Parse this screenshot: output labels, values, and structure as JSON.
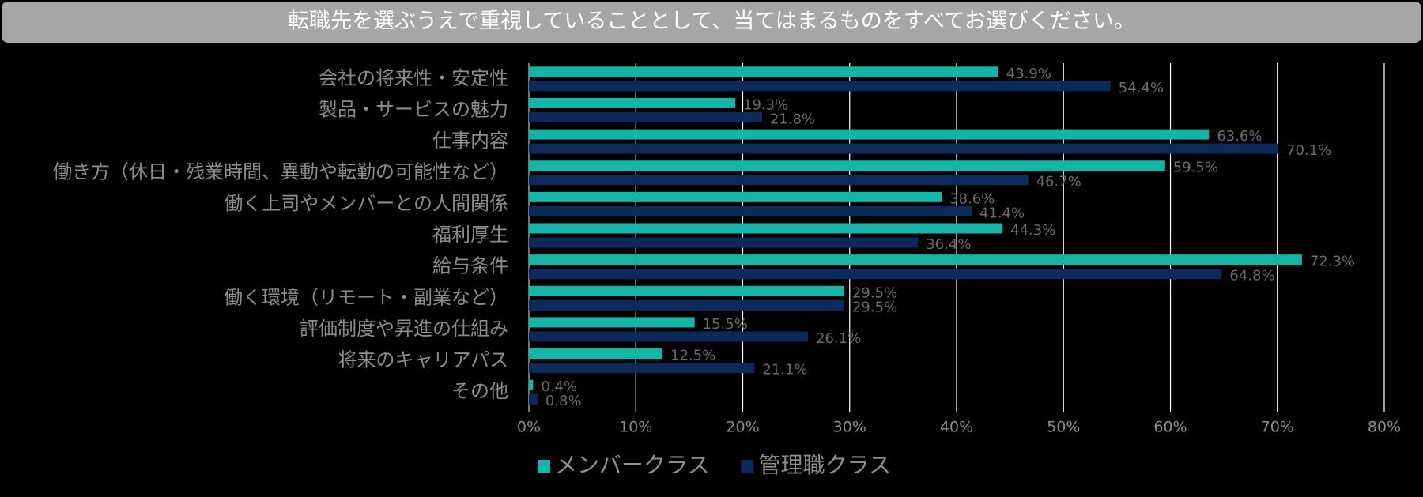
{
  "chart_data": {
    "type": "bar",
    "orientation": "horizontal",
    "title": "転職先を選ぶうえで重視していることとして、当てはまるものをすべてお選びください。",
    "categories": [
      "会社の将来性・安定性",
      "製品・サービスの魅力",
      "仕事内容",
      "働き方（休日・残業時間、異動や転勤の可能性など）",
      "働く上司やメンバーとの人間関係",
      "福利厚生",
      "給与条件",
      "働く環境（リモート・副業など）",
      "評価制度や昇進の仕組み",
      "将来のキャリアパス",
      "その他"
    ],
    "series": [
      {
        "name": "メンバークラス",
        "color": "#13b5a6",
        "values": [
          43.9,
          19.3,
          63.6,
          59.5,
          38.6,
          44.3,
          72.3,
          29.5,
          15.5,
          12.5,
          0.4
        ],
        "value_labels": [
          "43.9%",
          "19.3%",
          "63.6%",
          "59.5%",
          "38.6%",
          "44.3%",
          "72.3%",
          "29.5%",
          "15.5%",
          "12.5%",
          "0.4%"
        ]
      },
      {
        "name": "管理職クラス",
        "color": "#0c2a5c",
        "values": [
          54.4,
          21.8,
          70.1,
          46.7,
          41.4,
          36.4,
          64.8,
          29.5,
          26.1,
          21.1,
          0.8
        ],
        "value_labels": [
          "54.4%",
          "21.8%",
          "70.1%",
          "46.7%",
          "41.4%",
          "36.4%",
          "64.8%",
          "29.5%",
          "26.1%",
          "21.1%",
          "0.8%"
        ]
      }
    ],
    "xlim": [
      0,
      80
    ],
    "xticks": [
      {
        "value": 0,
        "label": "0%"
      },
      {
        "value": 10,
        "label": "10%"
      },
      {
        "value": 20,
        "label": "20%"
      },
      {
        "value": 30,
        "label": "30%"
      },
      {
        "value": 40,
        "label": "40%"
      },
      {
        "value": 50,
        "label": "50%"
      },
      {
        "value": 60,
        "label": "60%"
      },
      {
        "value": 70,
        "label": "70%"
      },
      {
        "value": 80,
        "label": "80%"
      }
    ],
    "grid": true,
    "legend": "bottom"
  }
}
